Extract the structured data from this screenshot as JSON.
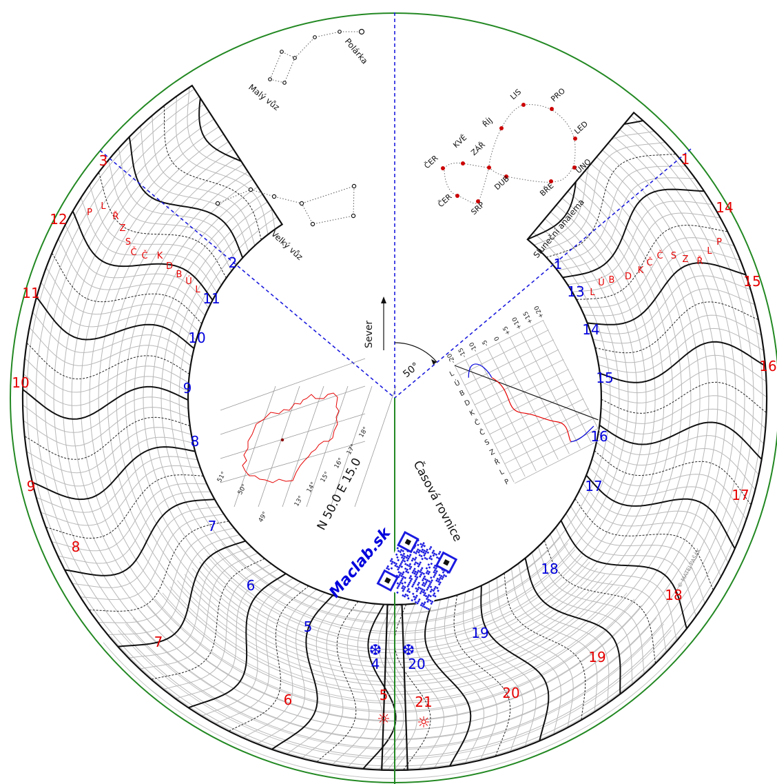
{
  "colors": {
    "outer_circle": "#228822",
    "red": "#e60000",
    "blue": "#0000dd",
    "grid": "#b8b8b8",
    "ink": "#111111"
  },
  "outer_hours": [
    "3",
    "12",
    "11",
    "10",
    "9",
    "8",
    "7",
    "6",
    "5",
    "21",
    "20",
    "19",
    "18",
    "17",
    "16",
    "15",
    "14",
    "1"
  ],
  "inner_hours": [
    "2",
    "11",
    "10",
    "9",
    "8",
    "7",
    "6",
    "5",
    "4",
    "20",
    "19",
    "18",
    "17",
    "16",
    "15",
    "14",
    "13",
    "1"
  ],
  "left_months": [
    "P",
    "L",
    "Ř",
    "Z",
    "S",
    "Č",
    "Č",
    "K",
    "D",
    "B",
    "Ú",
    "L"
  ],
  "right_months": [
    "L",
    "Ú",
    "B",
    "D",
    "K",
    "Č",
    "Č",
    "S",
    "Z",
    "Ř",
    "L",
    "P"
  ],
  "winter_icon": "snowflake-icon",
  "summer_icon": "sun-icon",
  "constellations": {
    "small_dipper": "Malý vůz",
    "pole_star": "Polárka",
    "big_dipper": "Velký vůz"
  },
  "analemma": {
    "title": "Sluneční analema",
    "months": [
      "LIS",
      "PRO",
      "ŘÍJ",
      "LED",
      "ČER",
      "KVĚ",
      "ZÁŘ",
      "ÚNO",
      "ČER",
      "DUB",
      "BŘE",
      "SRP"
    ]
  },
  "north_label": "Sever",
  "angle_label": "50°",
  "coordinates": "N 50.0   E 15.0",
  "map": {
    "longitudes": [
      "13°",
      "14°",
      "15°",
      "16°",
      "17°",
      "18°"
    ],
    "latitudes": [
      "49°",
      "50°",
      "51°"
    ]
  },
  "equation": {
    "title": "Časová rovnice",
    "minute_ticks": [
      "-20",
      "-15",
      "-10",
      "-5",
      "0",
      "+5",
      "+10",
      "+15",
      "+20"
    ],
    "months": [
      "L",
      "Ú",
      "B",
      "D",
      "K",
      "Č",
      "Č",
      "S",
      "Z",
      "Ř",
      "L",
      "P"
    ]
  },
  "logo_text": "Maclab.sk",
  "copyright": "© MATEJ PAŠÁK",
  "qr_icon": "qr-code-icon"
}
